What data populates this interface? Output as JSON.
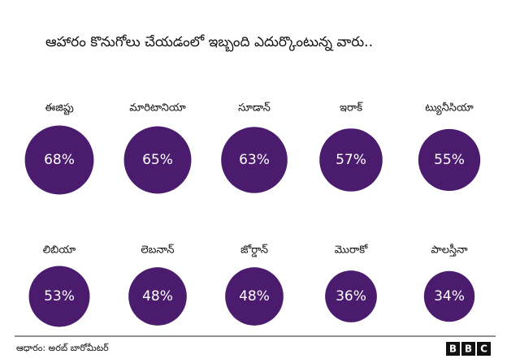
{
  "chart_data": {
    "type": "bubble",
    "title": "ఆహారం కొనుగోలు చేయడంలో ఇబ్బంది ఎదుర్కొంటున్న వారు..",
    "categories": [
      "ఈజిప్టు",
      "మారిటానియా",
      "సూడాన్",
      "ఇరాక్",
      "ట్యునీసియా",
      "లిబియా",
      "లెబనాన్",
      "జోర్డాన్",
      "మొరాకో",
      "పాలస్తీనా"
    ],
    "values": [
      68,
      65,
      63,
      57,
      55,
      53,
      48,
      48,
      36,
      34
    ],
    "value_labels": [
      "68%",
      "65%",
      "63%",
      "57%",
      "55%",
      "53%",
      "48%",
      "48%",
      "36%",
      "34%"
    ],
    "color": "#4b1c6e",
    "source": "ఆధారం: అరబ్ బారోమీటర్",
    "logo": [
      "B",
      "B",
      "C"
    ]
  }
}
